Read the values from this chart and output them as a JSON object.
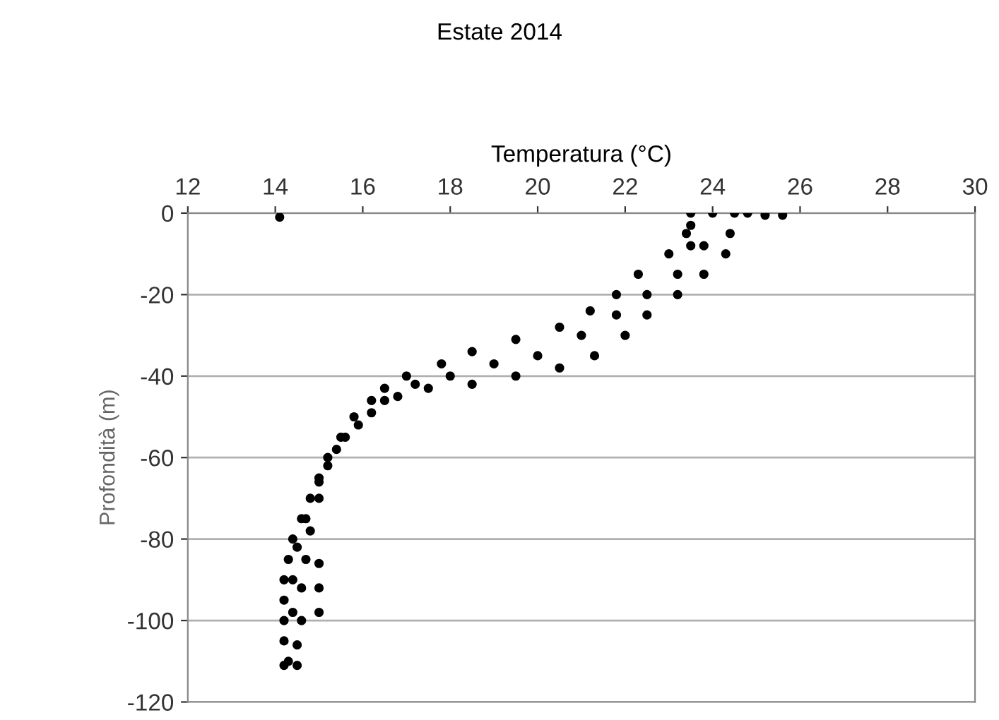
{
  "chart_data": {
    "type": "scatter",
    "title": "Estate 2014",
    "xlabel": "Temperatura (°C)",
    "ylabel": "Profondità (m)",
    "x": [
      23.5,
      23.4,
      23.0,
      22.3,
      21.8,
      21.2,
      20.5,
      19.5,
      18.5,
      17.8,
      17.0,
      16.5,
      16.2,
      15.8,
      15.5,
      15.2,
      15.0,
      14.8,
      14.6,
      14.4,
      14.3,
      14.2,
      14.2,
      14.2,
      14.2,
      14.2,
      24.5,
      24.4,
      24.3,
      23.8,
      23.2,
      22.5,
      22.0,
      21.3,
      20.5,
      19.5,
      18.5,
      17.5,
      16.8,
      16.2,
      15.6,
      15.2,
      15.0,
      14.8,
      14.7,
      14.6,
      14.6,
      14.5,
      14.5,
      24.0,
      23.8,
      23.2,
      22.5,
      21.8,
      21.0,
      20.0,
      19.0,
      18.0,
      17.2,
      16.5,
      15.9,
      15.4,
      15.0,
      14.7,
      14.5,
      14.4,
      14.4,
      14.3,
      14.1,
      25.6,
      25.2,
      24.8,
      23.5,
      23.5,
      15.0,
      15.0,
      15.0
    ],
    "values": [
      0,
      -5,
      -10,
      -15,
      -20,
      -24,
      -28,
      -31,
      -34,
      -37,
      -40,
      -43,
      -46,
      -50,
      -55,
      -60,
      -65,
      -70,
      -75,
      -80,
      -85,
      -90,
      -95,
      -100,
      -105,
      -111,
      0,
      -5,
      -10,
      -15,
      -20,
      -25,
      -30,
      -35,
      -38,
      -40,
      -42,
      -43,
      -45,
      -49,
      -55,
      -62,
      -70,
      -78,
      -85,
      -92,
      -100,
      -106,
      -111,
      0,
      -8,
      -15,
      -20,
      -25,
      -30,
      -35,
      -37,
      -40,
      -42,
      -46,
      -52,
      -58,
      -66,
      -75,
      -82,
      -90,
      -98,
      -110,
      -1,
      -0.5,
      -0.5,
      0,
      -3,
      -8,
      -86,
      -92,
      -98
    ],
    "color": "#000000",
    "marker": "circle",
    "xlim": [
      12,
      30
    ],
    "xticks": [
      12,
      14,
      16,
      18,
      20,
      22,
      24,
      26,
      28,
      30
    ],
    "ylim": [
      -120,
      0
    ],
    "yticks": [
      -120,
      -100,
      -80,
      -60,
      -40,
      -20,
      0
    ],
    "grid": "y"
  }
}
